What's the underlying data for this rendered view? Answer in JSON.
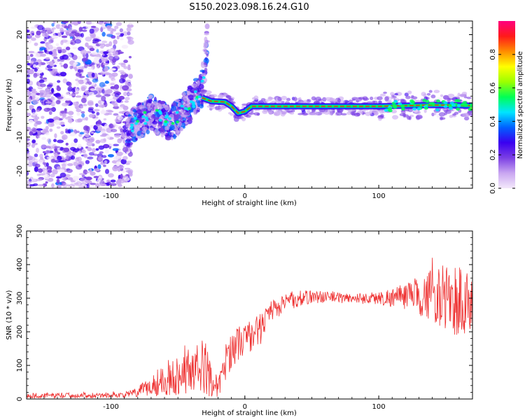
{
  "figure_title": "S150.2023.098.16.24.G10",
  "chart_data": [
    {
      "type": "heatmap",
      "title": "",
      "xlabel": "Height of straight line (km)",
      "ylabel": "Frequency (Hz)",
      "xlim": [
        -163,
        170
      ],
      "ylim": [
        -25,
        24
      ],
      "xticks": [
        -100,
        0,
        100
      ],
      "yticks": [
        -20,
        -10,
        0,
        10,
        20
      ],
      "colorbar": {
        "label": "Normalized spectral amplitude",
        "range": [
          0,
          1
        ],
        "ticks": [
          0.0,
          0.2,
          0.4,
          0.6,
          0.8
        ],
        "colormap": [
          "#f4e9fb",
          "#c9a6f1",
          "#7b3fe4",
          "#3a00f0",
          "#0060ff",
          "#00e5ff",
          "#00ff55",
          "#9cff00",
          "#ffff00",
          "#ff8c00",
          "#ff1a1a",
          "#ff007f"
        ]
      },
      "features": {
        "noise_region_x": [
          -163,
          -85
        ],
        "chirp_band": [
          [
            -88,
            -8
          ],
          [
            -70,
            -3
          ],
          [
            -55,
            -6
          ],
          [
            -40,
            0
          ],
          [
            -32,
            4
          ],
          [
            -28,
            18
          ]
        ],
        "ridge": [
          [
            -32,
            1.5
          ],
          [
            -25,
            0.5
          ],
          [
            -15,
            0.3
          ],
          [
            -10,
            -1
          ],
          [
            -5,
            -3
          ],
          [
            0,
            -2.5
          ],
          [
            5,
            -1
          ],
          [
            20,
            -1
          ],
          [
            60,
            -1
          ],
          [
            100,
            -1
          ],
          [
            140,
            -0.6
          ],
          [
            170,
            -0.8
          ]
        ]
      }
    },
    {
      "type": "line",
      "title": "",
      "xlabel": "Height of straight line (km)",
      "ylabel": "SNR (10 * v/v)",
      "xlim": [
        -163,
        170
      ],
      "ylim": [
        0,
        500
      ],
      "xticks": [
        -100,
        0,
        100
      ],
      "yticks": [
        0,
        100,
        200,
        300,
        400,
        500
      ],
      "color": "#ee3030",
      "envelope": {
        "x": [
          -163,
          -90,
          -80,
          -70,
          -60,
          -50,
          -40,
          -30,
          -20,
          -15,
          -10,
          0,
          10,
          20,
          30,
          50,
          80,
          100,
          120,
          140,
          160,
          170
        ],
        "mean": [
          10,
          12,
          20,
          40,
          60,
          70,
          90,
          95,
          30,
          100,
          150,
          180,
          200,
          260,
          290,
          305,
          300,
          300,
          305,
          310,
          290,
          280
        ],
        "amp": [
          8,
          8,
          15,
          35,
          50,
          60,
          70,
          85,
          25,
          60,
          55,
          50,
          50,
          35,
          30,
          20,
          15,
          20,
          40,
          80,
          120,
          90
        ]
      }
    }
  ]
}
